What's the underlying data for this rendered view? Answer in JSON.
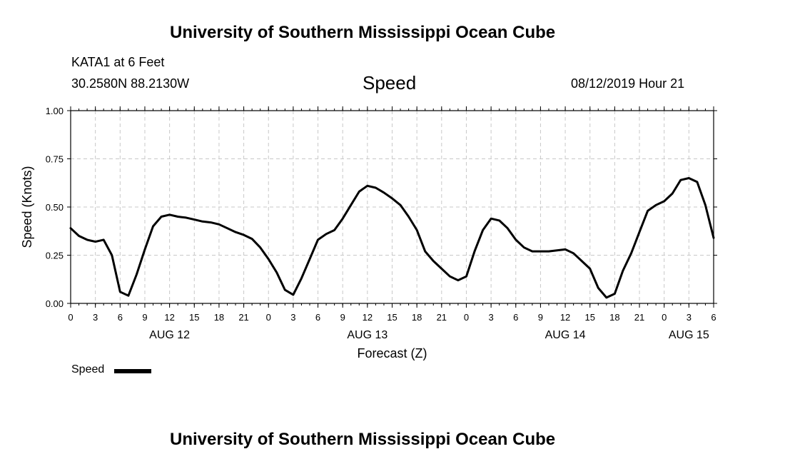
{
  "header": {
    "title_top": "University of Southern Mississippi Ocean Cube",
    "title_bottom": "University of Southern Mississippi Ocean Cube",
    "station": "KATA1 at 6 Feet",
    "coords": "30.2580N 88.2130W",
    "variable": "Speed",
    "datetime": "08/12/2019 Hour 21"
  },
  "chart_data": {
    "type": "line",
    "title": "Speed",
    "xlabel": "Forecast (Z)",
    "ylabel": "Speed (Knots)",
    "ylim": [
      0,
      1
    ],
    "xlim_hours": [
      0,
      78
    ],
    "y_ticks": [
      0,
      0.25,
      0.5,
      0.75,
      1.0
    ],
    "y_tick_labels": [
      "0.00",
      "0.25",
      "0.50",
      "0.75",
      "1.00"
    ],
    "x_tick_labels": [
      "0",
      "3",
      "6",
      "9",
      "12",
      "15",
      "18",
      "21",
      "0",
      "3",
      "6",
      "9",
      "12",
      "15",
      "18",
      "21",
      "0",
      "3",
      "6",
      "9",
      "12",
      "15",
      "18",
      "21",
      "0",
      "3",
      "6"
    ],
    "date_labels": [
      {
        "label": "AUG 12",
        "hour": 12
      },
      {
        "label": "AUG 13",
        "hour": 36
      },
      {
        "label": "AUG 14",
        "hour": 60
      },
      {
        "label": "AUG 15",
        "hour": 75
      }
    ],
    "grid": true,
    "legend": [
      {
        "name": "Speed",
        "color": "#000000"
      }
    ],
    "series": [
      {
        "name": "Speed",
        "x": [
          0,
          1,
          2,
          3,
          4,
          5,
          6,
          7,
          8,
          9,
          10,
          11,
          12,
          13,
          14,
          15,
          16,
          17,
          18,
          19,
          20,
          21,
          22,
          23,
          24,
          25,
          26,
          27,
          28,
          29,
          30,
          31,
          32,
          33,
          34,
          35,
          36,
          37,
          38,
          39,
          40,
          41,
          42,
          43,
          44,
          45,
          46,
          47,
          48,
          49,
          50,
          51,
          52,
          53,
          54,
          55,
          56,
          57,
          58,
          59,
          60,
          61,
          62,
          63,
          64,
          65,
          66,
          67,
          68,
          69,
          70,
          71,
          72,
          73,
          74,
          75,
          76,
          77,
          78
        ],
        "values": [
          0.39,
          0.35,
          0.33,
          0.32,
          0.33,
          0.25,
          0.06,
          0.04,
          0.15,
          0.28,
          0.4,
          0.45,
          0.46,
          0.45,
          0.445,
          0.435,
          0.425,
          0.42,
          0.41,
          0.39,
          0.37,
          0.355,
          0.335,
          0.29,
          0.23,
          0.16,
          0.07,
          0.045,
          0.13,
          0.23,
          0.33,
          0.36,
          0.38,
          0.44,
          0.51,
          0.58,
          0.61,
          0.6,
          0.575,
          0.545,
          0.51,
          0.45,
          0.38,
          0.27,
          0.22,
          0.18,
          0.14,
          0.12,
          0.14,
          0.27,
          0.38,
          0.44,
          0.43,
          0.39,
          0.33,
          0.29,
          0.27,
          0.27,
          0.27,
          0.275,
          0.28,
          0.26,
          0.22,
          0.18,
          0.08,
          0.03,
          0.05,
          0.17,
          0.26,
          0.37,
          0.48,
          0.51,
          0.53,
          0.57,
          0.64,
          0.65,
          0.63,
          0.51,
          0.34
        ]
      }
    ]
  }
}
